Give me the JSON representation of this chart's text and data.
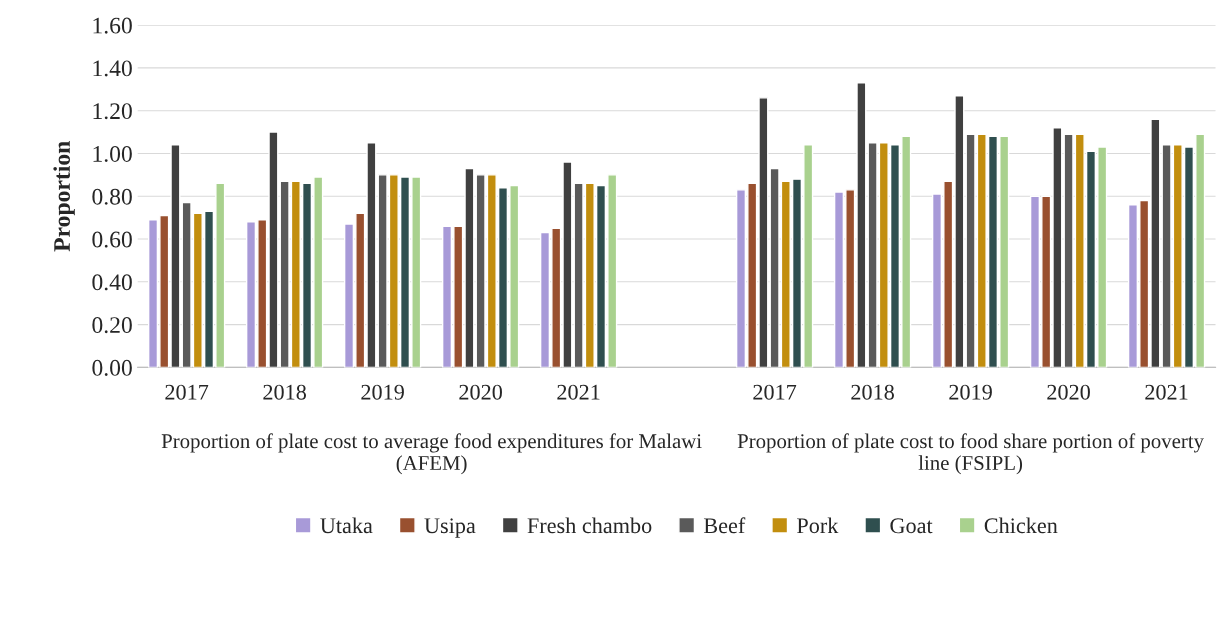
{
  "chart_data": {
    "type": "bar",
    "ylabel": "Proportion",
    "categories": [
      "2017",
      "2018",
      "2019",
      "2020",
      "2021",
      null,
      "2017",
      "2018",
      "2019",
      "2020",
      "2021"
    ],
    "series": [
      {
        "name": "Utaka",
        "color": "#a89ad8",
        "values": [
          0.69,
          0.68,
          0.67,
          0.66,
          0.63,
          null,
          0.83,
          0.82,
          0.81,
          0.8,
          0.76
        ]
      },
      {
        "name": "Usipa",
        "color": "#99502f",
        "values": [
          0.71,
          0.69,
          0.72,
          0.66,
          0.65,
          null,
          0.86,
          0.83,
          0.87,
          0.8,
          0.78
        ]
      },
      {
        "name": "Fresh chambo",
        "color": "#404040",
        "values": [
          1.04,
          1.1,
          1.05,
          0.93,
          0.96,
          null,
          1.26,
          1.33,
          1.27,
          1.12,
          1.16
        ]
      },
      {
        "name": "Beef",
        "color": "#5a5a5a",
        "values": [
          0.77,
          0.87,
          0.9,
          0.9,
          0.86,
          null,
          0.93,
          1.05,
          1.09,
          1.09,
          1.04
        ]
      },
      {
        "name": "Pork",
        "color": "#c28e0e",
        "values": [
          0.72,
          0.87,
          0.9,
          0.9,
          0.86,
          null,
          0.87,
          1.05,
          1.09,
          1.09,
          1.04
        ]
      },
      {
        "name": "Goat",
        "color": "#2f4f4f",
        "values": [
          0.73,
          0.86,
          0.89,
          0.84,
          0.85,
          null,
          0.88,
          1.04,
          1.08,
          1.01,
          1.03
        ]
      },
      {
        "name": "Chicken",
        "color": "#a9d18e",
        "values": [
          0.86,
          0.89,
          0.89,
          0.85,
          0.9,
          null,
          1.04,
          1.08,
          1.08,
          1.03,
          1.09
        ]
      }
    ],
    "ylim": [
      0,
      1.6
    ],
    "yticks": [
      {
        "value": 0,
        "label": "0.00"
      },
      {
        "value": 0.2,
        "label": "0.20"
      },
      {
        "value": 0.4,
        "label": "0.40"
      },
      {
        "value": 0.6,
        "label": "0.60"
      },
      {
        "value": 0.8,
        "label": "0.80"
      },
      {
        "value": 1.0,
        "label": "1.00"
      },
      {
        "value": 1.2,
        "label": "1.20"
      },
      {
        "value": 1.4,
        "label": "1.40"
      },
      {
        "value": 1.6,
        "label": "1.60"
      }
    ],
    "grid": "y",
    "legend": "bottom",
    "annotations": [
      "Proportion of plate cost to average food expenditures for Malawi (AFEM)",
      "Proportion of plate cost to food share portion of poverty line (FSIPL)"
    ]
  }
}
